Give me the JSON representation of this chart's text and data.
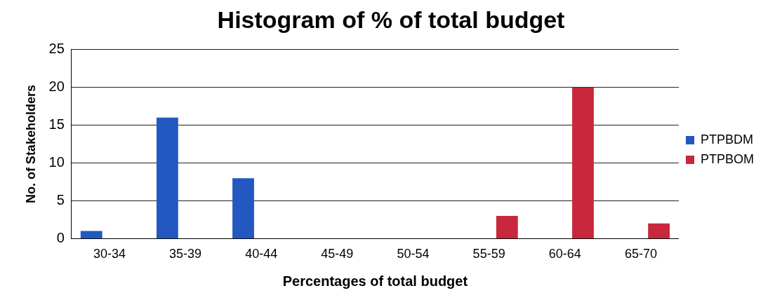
{
  "chart_data": {
    "type": "bar",
    "title": "Histogram of % of total budget",
    "xlabel": "Percentages of total budget",
    "ylabel": "No. of Stakeholders",
    "categories": [
      "30-34",
      "35-39",
      "40-44",
      "45-49",
      "50-54",
      "55-59",
      "60-64",
      "65-70"
    ],
    "series": [
      {
        "name": "PTPBDM",
        "color": "#2258c0",
        "values": [
          1,
          16,
          8,
          0,
          0,
          0,
          0,
          0
        ]
      },
      {
        "name": "PTPBOM",
        "color": "#c8283c",
        "values": [
          0,
          0,
          0,
          0,
          0,
          3,
          20,
          2
        ]
      }
    ],
    "ylim": [
      0,
      25
    ],
    "yticks": [
      0,
      5,
      10,
      15,
      20,
      25
    ],
    "grid": "y",
    "legend": "right"
  }
}
